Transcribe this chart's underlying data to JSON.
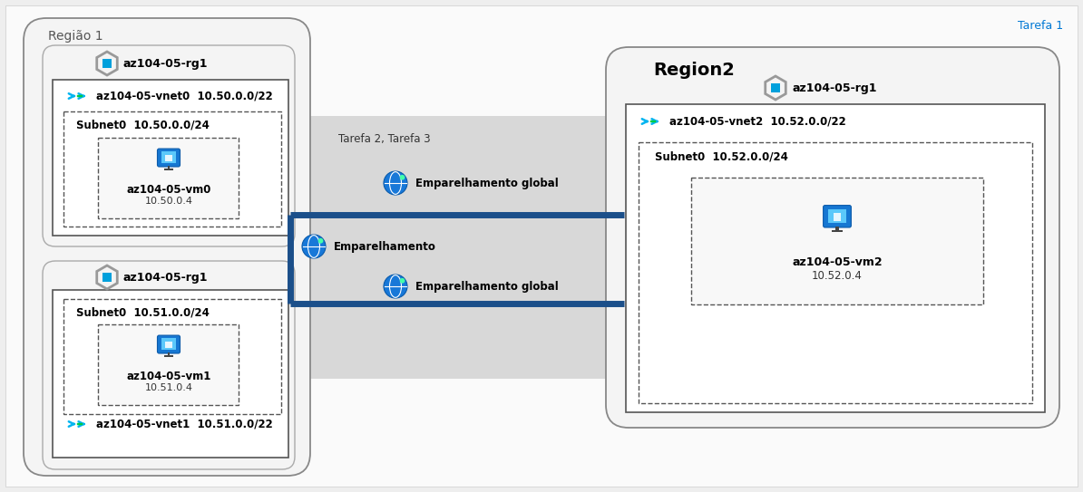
{
  "bg": "#eeeeee",
  "box_bg": "#f4f4f4",
  "gray_band": "#d8d8d8",
  "blue_line": "#1b4f8a",
  "t1_color": "#0078d4",
  "t1": "Tarefa 1",
  "t23": "Tarefa 2, Tarefa 3",
  "r1": "Região 1",
  "r2": "Region2",
  "rg_top": "az104-05-rg1",
  "rg_bot": "az104-05-rg1",
  "rg_right": "az104-05-rg1",
  "vnet0": "az104-05-vnet0  10.50.0.0/22",
  "sub0t": "Subnet0  10.50.0.0/24",
  "vm0n": "az104-05-vm0",
  "vm0i": "10.50.0.4",
  "vnet1": "az104-05-vnet1  10.51.0.0/22",
  "sub0b": "Subnet0  10.51.0.0/24",
  "vm1n": "az104-05-vm1",
  "vm1i": "10.51.0.4",
  "vnet2": "az104-05-vnet2  10.52.0.0/22",
  "sub0r": "Subnet0  10.52.0.0/24",
  "vm2n": "az104-05-vm2",
  "vm2i": "10.52.0.4",
  "p1": "Emparelhamento global",
  "p2": "Emparelhamento",
  "p3": "Emparelhamento global"
}
